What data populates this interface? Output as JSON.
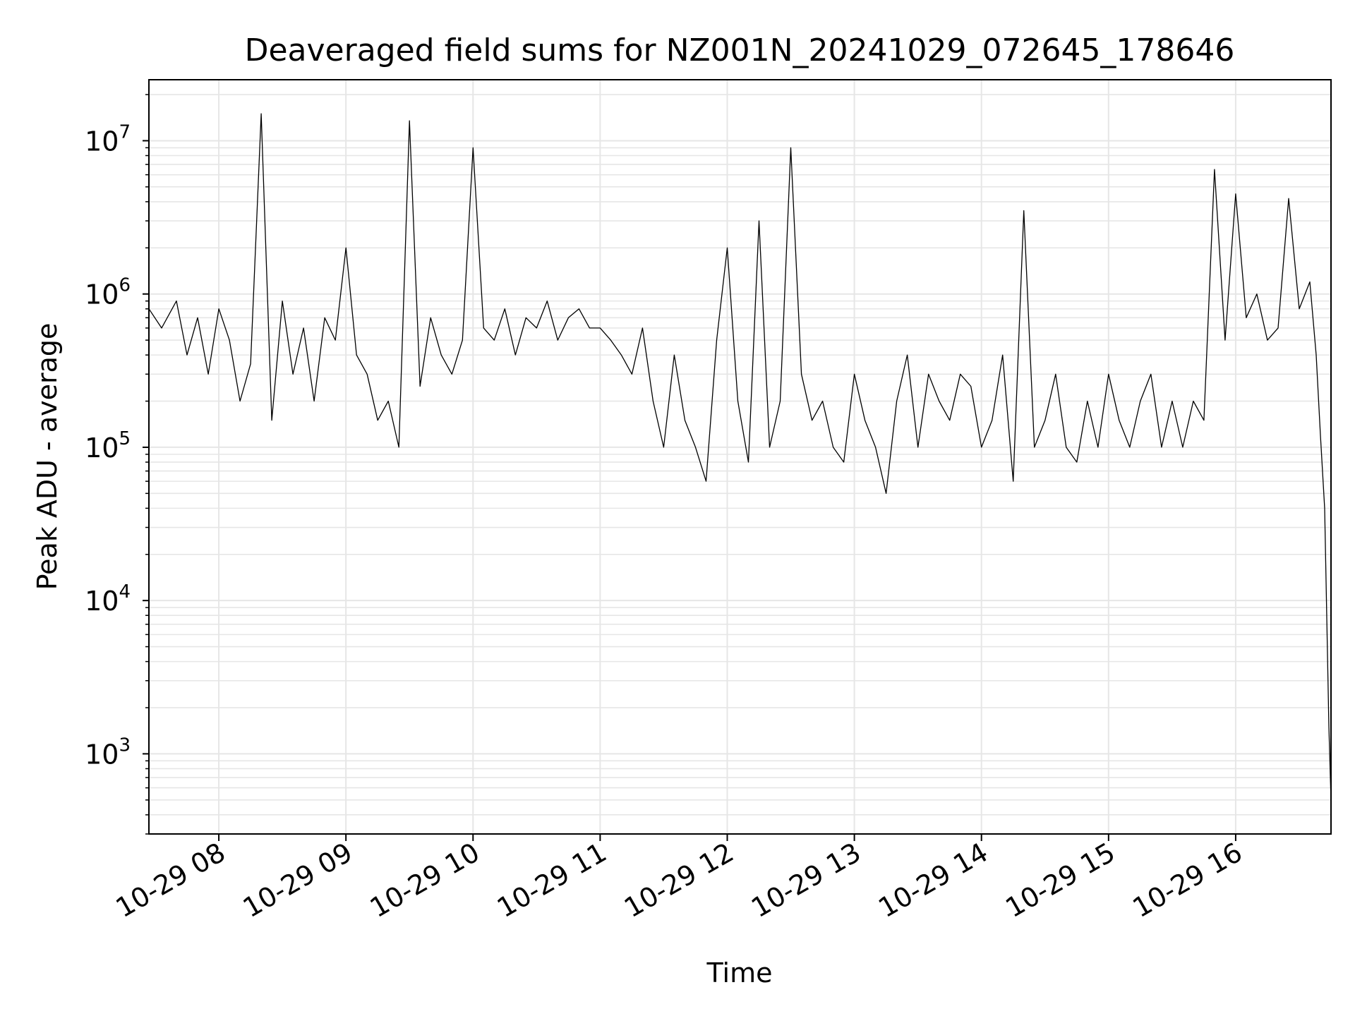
{
  "chart_data": {
    "type": "line",
    "title": "Deaveraged field sums for NZ001N_20241029_072645_178646",
    "xlabel": "Time",
    "ylabel": "Peak ADU - average",
    "yscale": "log",
    "ylim": [
      300,
      25000000
    ],
    "xlim": [
      "2024-10-29 07:27",
      "2024-10-29 16:45"
    ],
    "grid": true,
    "line_color": "#000000",
    "grid_color": "#e6e6e6",
    "x_tick_labels": [
      "10-29 08",
      "10-29 09",
      "10-29 10",
      "10-29 11",
      "10-29 12",
      "10-29 13",
      "10-29 14",
      "10-29 15",
      "10-29 16"
    ],
    "y_tick_labels": [
      {
        "base": "10",
        "exp": "3"
      },
      {
        "base": "10",
        "exp": "4"
      },
      {
        "base": "10",
        "exp": "5"
      },
      {
        "base": "10",
        "exp": "6"
      },
      {
        "base": "10",
        "exp": "7"
      }
    ],
    "series": [
      {
        "values_note": "",
        "x": [
          "2024-10-29 07:27",
          "2024-10-29 07:33",
          "2024-10-29 07:40",
          "2024-10-29 07:45",
          "2024-10-29 07:50",
          "2024-10-29 07:55",
          "2024-10-29 08:00",
          "2024-10-29 08:05",
          "2024-10-29 08:10",
          "2024-10-29 08:15",
          "2024-10-29 08:20",
          "2024-10-29 08:25",
          "2024-10-29 08:30",
          "2024-10-29 08:35",
          "2024-10-29 08:40",
          "2024-10-29 08:45",
          "2024-10-29 08:50",
          "2024-10-29 08:55",
          "2024-10-29 09:00",
          "2024-10-29 09:05",
          "2024-10-29 09:10",
          "2024-10-29 09:15",
          "2024-10-29 09:20",
          "2024-10-29 09:25",
          "2024-10-29 09:30",
          "2024-10-29 09:35",
          "2024-10-29 09:40",
          "2024-10-29 09:45",
          "2024-10-29 09:50",
          "2024-10-29 09:55",
          "2024-10-29 10:00",
          "2024-10-29 10:05",
          "2024-10-29 10:10",
          "2024-10-29 10:15",
          "2024-10-29 10:20",
          "2024-10-29 10:25",
          "2024-10-29 10:30",
          "2024-10-29 10:35",
          "2024-10-29 10:40",
          "2024-10-29 10:45",
          "2024-10-29 10:50",
          "2024-10-29 10:55",
          "2024-10-29 11:00",
          "2024-10-29 11:05",
          "2024-10-29 11:10",
          "2024-10-29 11:15",
          "2024-10-29 11:20",
          "2024-10-29 11:25",
          "2024-10-29 11:30",
          "2024-10-29 11:35",
          "2024-10-29 11:40",
          "2024-10-29 11:45",
          "2024-10-29 11:50",
          "2024-10-29 11:55",
          "2024-10-29 12:00",
          "2024-10-29 12:05",
          "2024-10-29 12:10",
          "2024-10-29 12:15",
          "2024-10-29 12:20",
          "2024-10-29 12:25",
          "2024-10-29 12:30",
          "2024-10-29 12:35",
          "2024-10-29 12:40",
          "2024-10-29 12:45",
          "2024-10-29 12:50",
          "2024-10-29 12:55",
          "2024-10-29 13:00",
          "2024-10-29 13:05",
          "2024-10-29 13:10",
          "2024-10-29 13:15",
          "2024-10-29 13:20",
          "2024-10-29 13:25",
          "2024-10-29 13:30",
          "2024-10-29 13:35",
          "2024-10-29 13:40",
          "2024-10-29 13:45",
          "2024-10-29 13:50",
          "2024-10-29 13:55",
          "2024-10-29 14:00",
          "2024-10-29 14:05",
          "2024-10-29 14:10",
          "2024-10-29 14:15",
          "2024-10-29 14:20",
          "2024-10-29 14:25",
          "2024-10-29 14:30",
          "2024-10-29 14:35",
          "2024-10-29 14:40",
          "2024-10-29 14:45",
          "2024-10-29 14:50",
          "2024-10-29 14:55",
          "2024-10-29 15:00",
          "2024-10-29 15:05",
          "2024-10-29 15:10",
          "2024-10-29 15:15",
          "2024-10-29 15:20",
          "2024-10-29 15:25",
          "2024-10-29 15:30",
          "2024-10-29 15:35",
          "2024-10-29 15:40",
          "2024-10-29 15:45",
          "2024-10-29 15:50",
          "2024-10-29 15:55",
          "2024-10-29 16:00",
          "2024-10-29 16:05",
          "2024-10-29 16:10",
          "2024-10-29 16:15",
          "2024-10-29 16:20",
          "2024-10-29 16:25",
          "2024-10-29 16:30",
          "2024-10-29 16:35",
          "2024-10-29 16:38",
          "2024-10-29 16:40",
          "2024-10-29 16:42",
          "2024-10-29 16:44",
          "2024-10-29 16:45"
        ],
        "y": [
          800000,
          600000,
          900000,
          400000,
          700000,
          300000,
          800000,
          500000,
          200000,
          350000,
          15000000,
          150000,
          900000,
          300000,
          600000,
          200000,
          700000,
          500000,
          2000000,
          400000,
          300000,
          150000,
          200000,
          100000,
          13500000,
          250000,
          700000,
          400000,
          300000,
          500000,
          9000000,
          600000,
          500000,
          800000,
          400000,
          700000,
          600000,
          900000,
          500000,
          700000,
          800000,
          600000,
          600000,
          500000,
          400000,
          300000,
          600000,
          200000,
          100000,
          400000,
          150000,
          100000,
          60000,
          500000,
          2000000,
          200000,
          80000,
          3000000,
          100000,
          200000,
          9000000,
          300000,
          150000,
          200000,
          100000,
          80000,
          300000,
          150000,
          100000,
          50000,
          200000,
          400000,
          100000,
          300000,
          200000,
          150000,
          300000,
          250000,
          100000,
          150000,
          400000,
          60000,
          3500000,
          100000,
          150000,
          300000,
          100000,
          80000,
          200000,
          100000,
          300000,
          150000,
          100000,
          200000,
          300000,
          100000,
          200000,
          100000,
          200000,
          150000,
          6500000,
          500000,
          4500000,
          700000,
          1000000,
          500000,
          600000,
          4200000,
          800000,
          1200000,
          400000,
          120000,
          40000,
          1500,
          500
        ]
      }
    ]
  }
}
